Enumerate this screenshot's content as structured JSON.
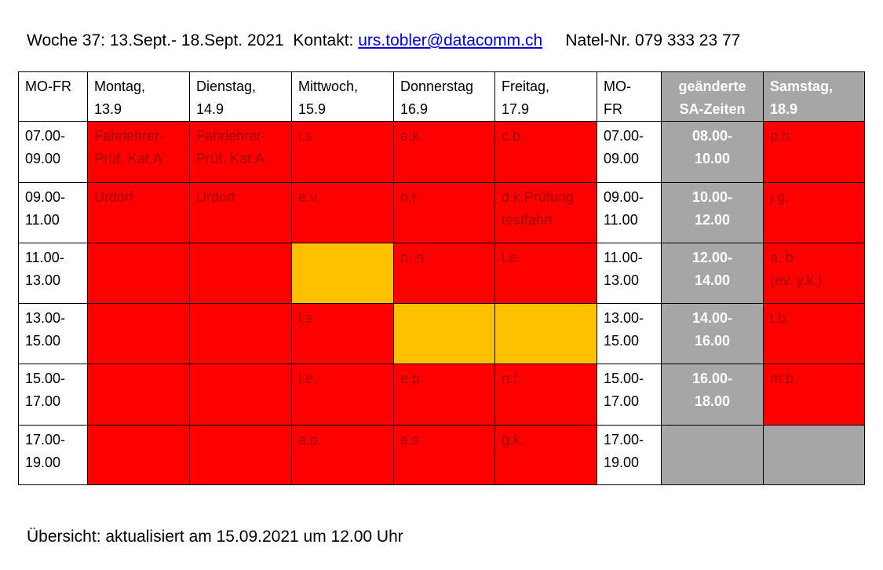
{
  "header": {
    "intro": "Woche 37: 13.Sept.- 18.Sept. 2021  Kontakt:",
    "email": "urs.tobler@datacomm.ch",
    "phone": "Natel-Nr. 079 333 23 77"
  },
  "table": {
    "columns": [
      "MO-FR",
      "Montag,\n13.9",
      "Dienstag,\n14.9",
      "Mittwoch,\n15.9",
      "Donnerstag\n16.9",
      "Freitag,\n17.9",
      "MO-\nFR",
      "geänderte\nSA-Zeiten",
      "Samstag,\n18.9"
    ],
    "column_fills": [
      "#ffffff",
      "#ffffff",
      "#ffffff",
      "#ffffff",
      "#ffffff",
      "#ffffff",
      "#ffffff",
      "#a6a6a6",
      "#a6a6a6"
    ],
    "rows": [
      [
        "07.00-\n09.00",
        "Fahrlehrer-\nPrüf. Kat.A",
        "Fahrlehrer-\nPrüf. Kat.A",
        "i.s.",
        "e.k.",
        "c.b.",
        "07.00-\n09.00",
        "08.00-\n10.00",
        "p.h."
      ],
      [
        "09.00-\n11.00",
        "Urdorf",
        "Urdorf",
        "e.v.",
        "n.r.",
        "d.k.Prüfung\ntestfahrt",
        "09.00-\n11.00",
        "10.00-\n12.00",
        "j.g."
      ],
      [
        "11.00-\n13.00",
        null,
        null,
        null,
        "n. n.",
        "l.e.",
        "11.00-\n13.00",
        "12.00-\n14.00",
        "a. b.\n(ev. y.k.)"
      ],
      [
        "13.00-\n15.00",
        null,
        null,
        "l.s",
        null,
        null,
        "13.00-\n15.00",
        "14.00-\n16.00",
        "t.b."
      ],
      [
        "15.00-\n17.00",
        null,
        null,
        "l.e.",
        "e.p.",
        "n.f.",
        "15.00-\n17.00",
        "16.00-\n18.00",
        "m.b."
      ],
      [
        "17.00-\n19.00",
        null,
        null,
        "a.p.",
        "a.s.",
        "g.k.",
        "17.00-\n19.00",
        null,
        null
      ]
    ],
    "cell_fills": [
      [
        "#ffffff",
        "#ff0000",
        "#ff0000",
        "#ff0000",
        "#ff0000",
        "#ff0000",
        "#ffffff",
        "#a6a6a6",
        "#ff0000"
      ],
      [
        "#ffffff",
        "#ff0000",
        "#ff0000",
        "#ff0000",
        "#ff0000",
        "#ff0000",
        "#ffffff",
        "#a6a6a6",
        "#ff0000"
      ],
      [
        "#ffffff",
        "#ff0000",
        "#ff0000",
        "#ffc000",
        "#ff0000",
        "#ff0000",
        "#ffffff",
        "#a6a6a6",
        "#ff0000"
      ],
      [
        "#ffffff",
        "#ff0000",
        "#ff0000",
        "#ff0000",
        "#ffc000",
        "#ffc000",
        "#ffffff",
        "#a6a6a6",
        "#ff0000"
      ],
      [
        "#ffffff",
        "#ff0000",
        "#ff0000",
        "#ff0000",
        "#ff0000",
        "#ff0000",
        "#ffffff",
        "#a6a6a6",
        "#ff0000"
      ],
      [
        "#ffffff",
        "#ff0000",
        "#ff0000",
        "#ff0000",
        "#ff0000",
        "#ff0000",
        "#ffffff",
        "#a6a6a6",
        "#a6a6a6"
      ]
    ]
  },
  "footer": "Übersicht: aktualisiert am 15.09.2021 um 12.00 Uhr"
}
